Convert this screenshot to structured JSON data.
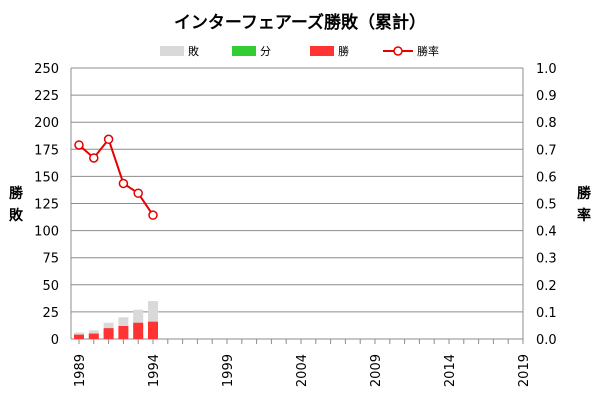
{
  "chart_data": {
    "type": "bar+line",
    "title": "インターフェアーズ勝敗（累計）",
    "left_axis_title": [
      "勝",
      "敗"
    ],
    "right_axis_title": [
      "勝",
      "率"
    ],
    "y_left": {
      "min": 0,
      "max": 250,
      "step": 25
    },
    "y_right": {
      "min": 0.0,
      "max": 1.0,
      "step": 0.1
    },
    "x": {
      "min": 1989,
      "max": 2019,
      "labels": [
        "1989",
        "1994",
        "1999",
        "2004",
        "2009",
        "2014",
        "2019"
      ]
    },
    "legend_position": "top",
    "grid": true,
    "series": [
      {
        "name": "敗",
        "kind": "bar",
        "color": "#d9d9d9",
        "stack": "total",
        "x": [
          1989,
          1990,
          1991,
          1992,
          1993,
          1994
        ],
        "values": [
          6,
          8,
          15,
          20,
          27,
          35
        ]
      },
      {
        "name": "分",
        "kind": "bar",
        "color": "#33cc33",
        "stack": "total",
        "x": [
          1989,
          1990,
          1991,
          1992,
          1993,
          1994
        ],
        "values": [
          0,
          0,
          0,
          0,
          0,
          0
        ]
      },
      {
        "name": "勝",
        "kind": "bar",
        "color": "#ff3333",
        "stack": "total",
        "x": [
          1989,
          1990,
          1991,
          1992,
          1993,
          1994
        ],
        "values": [
          4,
          5,
          10,
          12,
          15,
          16
        ]
      },
      {
        "name": "勝率",
        "kind": "line",
        "axis": "right",
        "color": "#e60000",
        "x": [
          1989,
          1990,
          1991,
          1992,
          1993,
          1994
        ],
        "values": [
          0.716,
          0.668,
          0.737,
          0.574,
          0.538,
          0.457
        ]
      }
    ]
  }
}
